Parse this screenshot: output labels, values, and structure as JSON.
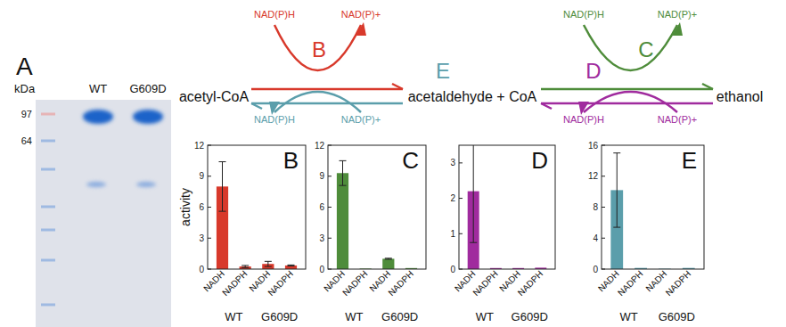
{
  "chart_data": [
    {
      "type": "bar",
      "title": "B",
      "y_label": "activity",
      "categories": [
        "NADH",
        "NADPH",
        "NADH",
        "NADPH"
      ],
      "group_labels": [
        "WT",
        "G609D"
      ],
      "values": [
        8.0,
        0.25,
        0.5,
        0.35
      ],
      "errors": [
        2.4,
        0.1,
        0.25,
        0.05
      ],
      "color": "#d8392b",
      "ylim": [
        0,
        12
      ],
      "yticks": [
        0,
        3,
        6,
        9,
        12
      ]
    },
    {
      "type": "bar",
      "title": "C",
      "categories": [
        "NADH",
        "NADPH",
        "NADH",
        "NADPH"
      ],
      "group_labels": [
        "WT",
        "G609D"
      ],
      "values": [
        9.3,
        0.05,
        1.0,
        0.1
      ],
      "errors": [
        1.2,
        0,
        0.05,
        0
      ],
      "color": "#4e8c3a",
      "ylim": [
        0,
        12
      ],
      "yticks": [
        0,
        3,
        6,
        9,
        12
      ]
    },
    {
      "type": "bar",
      "title": "D",
      "categories": [
        "NADH",
        "NADPH",
        "NADH",
        "NADPH"
      ],
      "group_labels": [
        "WT",
        "G609D"
      ],
      "values": [
        2.2,
        0.03,
        0.03,
        0.04
      ],
      "errors": [
        1.45,
        0,
        0,
        0
      ],
      "color": "#a02b9e",
      "ylim": [
        0,
        3.5
      ],
      "yticks": [
        0,
        1,
        2,
        3
      ]
    },
    {
      "type": "bar",
      "title": "E",
      "categories": [
        "NADH",
        "NADPH",
        "NADH",
        "NADPH"
      ],
      "group_labels": [
        "WT",
        "G609D"
      ],
      "values": [
        10.2,
        0.15,
        0.05,
        0.15
      ],
      "errors": [
        4.8,
        0,
        0,
        0
      ],
      "color": "#5b9eab",
      "ylim": [
        0,
        16
      ],
      "yticks": [
        0,
        4,
        8,
        12,
        16
      ]
    }
  ],
  "gel": {
    "label": "A",
    "unit": "kDa",
    "lanes": [
      "WT",
      "G609D"
    ],
    "markers": [
      97,
      64
    ]
  },
  "diagram": {
    "nodes": [
      "acetyl-CoA",
      "acetaldehyde + CoA",
      "ethanol"
    ],
    "reactions": [
      {
        "label": "B",
        "from": 0,
        "to": 1,
        "cofactor_in": "NAD(P)H",
        "cofactor_out": "NAD(P)+",
        "color": "#d8392b"
      },
      {
        "label": "C",
        "from": 1,
        "to": 2,
        "cofactor_in": "NAD(P)H",
        "cofactor_out": "NAD(P)+",
        "color": "#4e8c3a"
      },
      {
        "label": "D",
        "from": 2,
        "to": 1,
        "cofactor_in": "NAD(P)+",
        "cofactor_out": "NAD(P)H",
        "color": "#a02b9e"
      },
      {
        "label": "E",
        "from": 1,
        "to": 0,
        "cofactor_in": "NAD(P)+",
        "cofactor_out": "NAD(P)H",
        "color": "#5b9eab"
      }
    ]
  }
}
